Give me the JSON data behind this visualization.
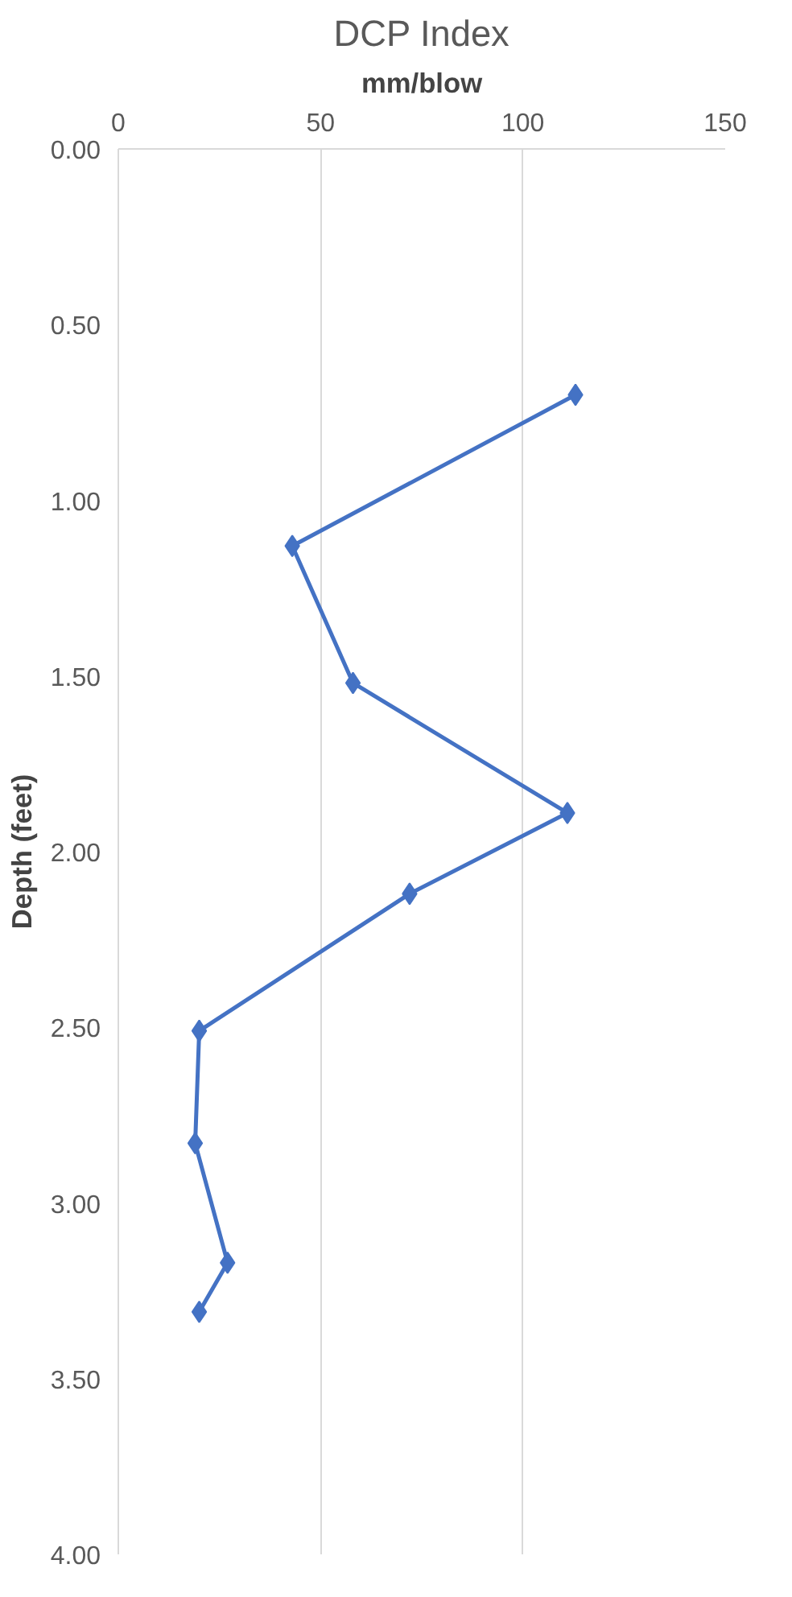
{
  "chart_data": {
    "type": "line",
    "title": "DCP Index",
    "xlabel": "mm/blow",
    "ylabel": "Depth (feet)",
    "series": [
      {
        "color": "#4472c4",
        "x": [
          113,
          43,
          58,
          111,
          72,
          20,
          19,
          27,
          20
        ],
        "values": [
          0.7,
          1.13,
          1.52,
          1.89,
          2.12,
          2.51,
          2.83,
          3.17,
          3.31
        ]
      }
    ],
    "xlim": [
      0,
      150
    ],
    "xticks": [
      0,
      50,
      100,
      150
    ],
    "ylim": [
      4,
      0
    ],
    "yticks": [
      {
        "value": 0,
        "label": "0.00"
      },
      {
        "value": 0.5,
        "label": "0.50"
      },
      {
        "value": 1,
        "label": "1.00"
      },
      {
        "value": 1.5,
        "label": "1.50"
      },
      {
        "value": 2,
        "label": "2.00"
      },
      {
        "value": 2.5,
        "label": "2.50"
      },
      {
        "value": 3,
        "label": "3.00"
      },
      {
        "value": 3.5,
        "label": "3.50"
      },
      {
        "value": 4,
        "label": "4.00"
      }
    ],
    "grid": "x",
    "marker": "diamond",
    "line_style": "solid"
  }
}
